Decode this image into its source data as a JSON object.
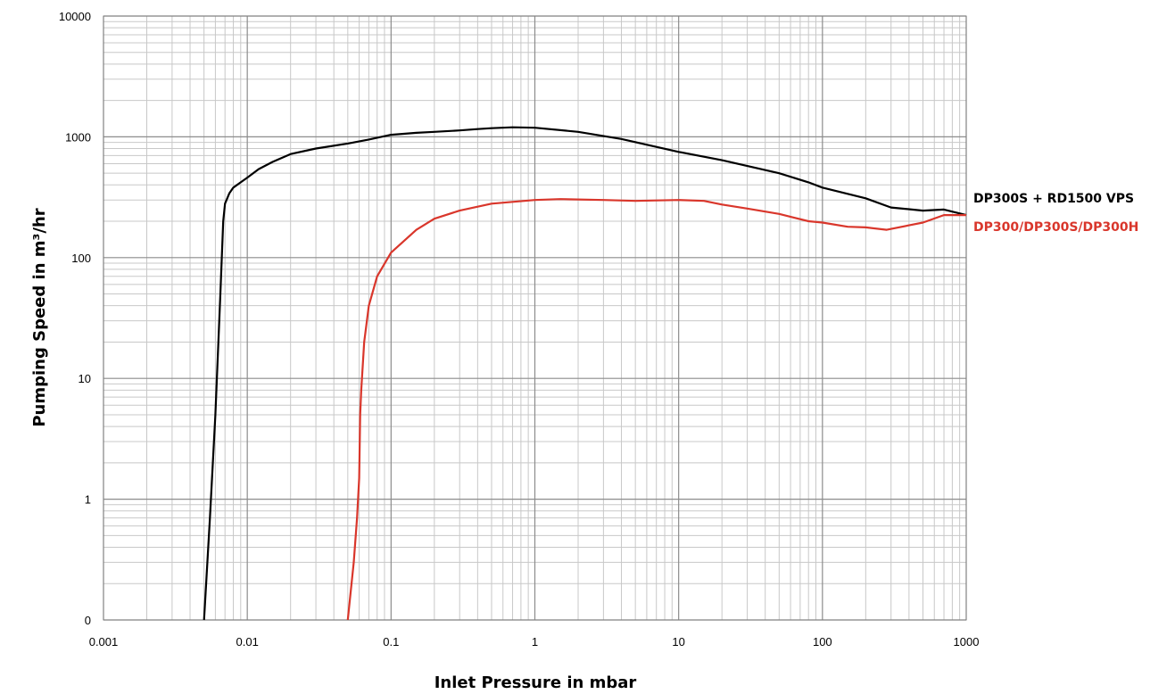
{
  "chart_data": {
    "type": "line",
    "x_scale": "log",
    "y_scale": "log",
    "xlim": [
      0.001,
      1000
    ],
    "ylim": [
      0.1,
      10000
    ],
    "xlabel": "Inlet Pressure in mbar",
    "ylabel": "Pumping Speed in  m³/hr",
    "grid": true,
    "x_tick_labels": [
      "0.001",
      "0.01",
      "0.1",
      "1",
      "10",
      "100",
      "1000"
    ],
    "x_tick_values": [
      0.001,
      0.01,
      0.1,
      1,
      10,
      100,
      1000
    ],
    "y_tick_labels": [
      "0",
      "1",
      "10",
      "100",
      "1000",
      "10000"
    ],
    "y_tick_values": [
      0.1,
      1,
      10,
      100,
      1000,
      10000
    ],
    "series": [
      {
        "name": "DP300S + RD1500 VPS",
        "color": "#000000",
        "points": [
          [
            0.005,
            0.1
          ],
          [
            0.0055,
            0.7
          ],
          [
            0.006,
            5
          ],
          [
            0.0065,
            50
          ],
          [
            0.0068,
            200
          ],
          [
            0.007,
            280
          ],
          [
            0.0075,
            340
          ],
          [
            0.008,
            380
          ],
          [
            0.009,
            420
          ],
          [
            0.01,
            460
          ],
          [
            0.012,
            540
          ],
          [
            0.015,
            620
          ],
          [
            0.02,
            720
          ],
          [
            0.03,
            800
          ],
          [
            0.05,
            880
          ],
          [
            0.07,
            950
          ],
          [
            0.1,
            1040
          ],
          [
            0.15,
            1080
          ],
          [
            0.2,
            1100
          ],
          [
            0.3,
            1130
          ],
          [
            0.4,
            1160
          ],
          [
            0.5,
            1180
          ],
          [
            0.7,
            1200
          ],
          [
            1,
            1190
          ],
          [
            2,
            1100
          ],
          [
            4,
            960
          ],
          [
            10,
            750
          ],
          [
            20,
            640
          ],
          [
            50,
            500
          ],
          [
            80,
            420
          ],
          [
            100,
            380
          ],
          [
            200,
            310
          ],
          [
            300,
            260
          ],
          [
            500,
            245
          ],
          [
            700,
            250
          ],
          [
            1000,
            225
          ]
        ]
      },
      {
        "name": "DP300/DP300S/DP300H",
        "color": "#d9362b",
        "points": [
          [
            0.05,
            0.1
          ],
          [
            0.055,
            0.3
          ],
          [
            0.058,
            0.7
          ],
          [
            0.06,
            1.5
          ],
          [
            0.061,
            5
          ],
          [
            0.062,
            8
          ],
          [
            0.065,
            20
          ],
          [
            0.07,
            40
          ],
          [
            0.08,
            70
          ],
          [
            0.1,
            110
          ],
          [
            0.15,
            170
          ],
          [
            0.2,
            210
          ],
          [
            0.3,
            245
          ],
          [
            0.5,
            280
          ],
          [
            1,
            300
          ],
          [
            1.5,
            305
          ],
          [
            3,
            300
          ],
          [
            5,
            295
          ],
          [
            10,
            300
          ],
          [
            15,
            295
          ],
          [
            20,
            275
          ],
          [
            30,
            255
          ],
          [
            50,
            230
          ],
          [
            80,
            200
          ],
          [
            100,
            195
          ],
          [
            150,
            180
          ],
          [
            200,
            178
          ],
          [
            280,
            170
          ],
          [
            400,
            185
          ],
          [
            500,
            195
          ],
          [
            700,
            225
          ],
          [
            1000,
            225
          ]
        ]
      }
    ]
  }
}
